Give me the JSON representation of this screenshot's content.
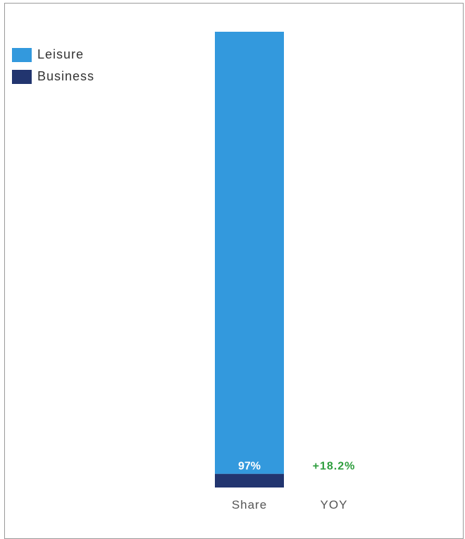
{
  "chart_data": {
    "type": "bar",
    "stacked": true,
    "categories": [
      "Share"
    ],
    "series": [
      {
        "name": "Business",
        "values": [
          3
        ],
        "color": "#22356f"
      },
      {
        "name": "Leisure",
        "values": [
          97
        ],
        "color": "#3399dd"
      }
    ],
    "data_labels": {
      "Share": "97%",
      "YOY": "+18.2%"
    },
    "x_tick_labels": [
      "Share",
      "YOY"
    ],
    "yoy_color": "#2e9e3e",
    "ylim": [
      0,
      100
    ],
    "legend_placement": "top-left",
    "grid": false
  }
}
